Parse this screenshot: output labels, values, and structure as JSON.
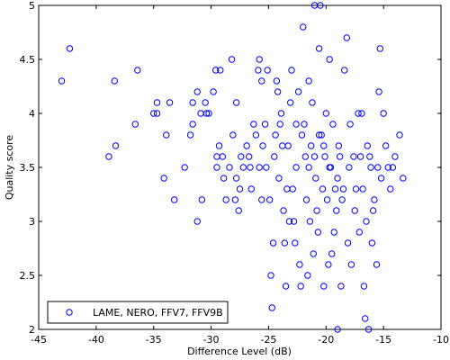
{
  "chart_data": {
    "type": "scatter",
    "xlabel": "Difference Level (dB)",
    "ylabel": "Quality score",
    "xlim": [
      -45,
      -10
    ],
    "ylim": [
      2,
      5
    ],
    "xticks": [
      -45,
      -40,
      -35,
      -30,
      -25,
      -20,
      -15,
      -10
    ],
    "yticks": [
      2,
      2.5,
      3,
      3.5,
      4,
      4.5,
      5
    ],
    "grid": false,
    "legend_position": "bottom-left",
    "marker_color": "#0000ff",
    "series": [
      {
        "name": "LAME, NERO, FFV7, FFV9B",
        "points": [
          [
            -43.0,
            4.3
          ],
          [
            -42.3,
            4.6
          ],
          [
            -38.4,
            4.3
          ],
          [
            -38.3,
            3.7
          ],
          [
            -38.9,
            3.6
          ],
          [
            -36.4,
            4.4
          ],
          [
            -36.6,
            3.9
          ],
          [
            -35.0,
            4.0
          ],
          [
            -34.7,
            4.1
          ],
          [
            -34.7,
            4.0
          ],
          [
            -34.1,
            3.4
          ],
          [
            -33.9,
            3.8
          ],
          [
            -33.6,
            4.1
          ],
          [
            -33.2,
            3.2
          ],
          [
            -32.3,
            3.5
          ],
          [
            -31.8,
            3.8
          ],
          [
            -31.6,
            3.9
          ],
          [
            -31.6,
            4.1
          ],
          [
            -31.2,
            4.2
          ],
          [
            -30.9,
            4.0
          ],
          [
            -30.5,
            4.1
          ],
          [
            -30.2,
            4.0
          ],
          [
            -31.2,
            3.0
          ],
          [
            -30.8,
            3.2
          ],
          [
            -30.4,
            4.0
          ],
          [
            -29.8,
            4.2
          ],
          [
            -29.6,
            4.4
          ],
          [
            -29.2,
            4.4
          ],
          [
            -29.5,
            3.6
          ],
          [
            -29.5,
            3.5
          ],
          [
            -29.3,
            3.7
          ],
          [
            -29.0,
            3.6
          ],
          [
            -28.9,
            3.4
          ],
          [
            -28.7,
            3.2
          ],
          [
            -28.2,
            4.5
          ],
          [
            -28.4,
            3.5
          ],
          [
            -28.1,
            3.8
          ],
          [
            -27.9,
            3.2
          ],
          [
            -27.6,
            3.1
          ],
          [
            -27.8,
            4.1
          ],
          [
            -27.4,
            3.6
          ],
          [
            -27.2,
            3.5
          ],
          [
            -27.5,
            3.3
          ],
          [
            -26.9,
            3.7
          ],
          [
            -26.7,
            3.6
          ],
          [
            -26.5,
            3.3
          ],
          [
            -26.3,
            3.9
          ],
          [
            -26.1,
            3.8
          ],
          [
            -25.8,
            4.5
          ],
          [
            -25.9,
            4.4
          ],
          [
            -25.6,
            4.3
          ],
          [
            -25.8,
            3.5
          ],
          [
            -25.5,
            3.7
          ],
          [
            -25.6,
            3.2
          ],
          [
            -25.3,
            3.9
          ],
          [
            -25.1,
            4.4
          ],
          [
            -25.2,
            3.5
          ],
          [
            -24.9,
            3.2
          ],
          [
            -24.8,
            2.5
          ],
          [
            -24.7,
            2.2
          ],
          [
            -24.6,
            2.8
          ],
          [
            -24.5,
            3.6
          ],
          [
            -24.3,
            4.3
          ],
          [
            -24.2,
            4.2
          ],
          [
            -24.4,
            3.8
          ],
          [
            -24.1,
            3.4
          ],
          [
            -23.9,
            4.0
          ],
          [
            -23.8,
            3.7
          ],
          [
            -23.7,
            3.1
          ],
          [
            -23.5,
            2.4
          ],
          [
            -23.6,
            2.8
          ],
          [
            -23.3,
            3.7
          ],
          [
            -23.2,
            3.0
          ],
          [
            -23.1,
            4.1
          ],
          [
            -23.0,
            4.4
          ],
          [
            -22.9,
            3.3
          ],
          [
            -22.8,
            3.0
          ],
          [
            -22.7,
            2.8
          ],
          [
            -22.6,
            3.9
          ],
          [
            -22.6,
            3.5
          ],
          [
            -22.4,
            4.2
          ],
          [
            -22.3,
            2.6
          ],
          [
            -22.2,
            2.4
          ],
          [
            -22.0,
            4.8
          ],
          [
            -21.9,
            3.9
          ],
          [
            -21.8,
            3.6
          ],
          [
            -21.7,
            3.2
          ],
          [
            -21.6,
            2.5
          ],
          [
            -21.5,
            4.3
          ],
          [
            -21.4,
            3.0
          ],
          [
            -21.3,
            3.7
          ],
          [
            -21.2,
            4.1
          ],
          [
            -21.1,
            2.7
          ],
          [
            -21.0,
            5.0
          ],
          [
            -20.9,
            3.4
          ],
          [
            -20.8,
            3.1
          ],
          [
            -20.7,
            2.9
          ],
          [
            -20.6,
            4.6
          ],
          [
            -20.5,
            5.0
          ],
          [
            -20.4,
            3.8
          ],
          [
            -20.3,
            3.3
          ],
          [
            -20.2,
            2.4
          ],
          [
            -20.1,
            3.6
          ],
          [
            -20.0,
            4.0
          ],
          [
            -19.9,
            3.2
          ],
          [
            -19.8,
            2.6
          ],
          [
            -19.7,
            4.5
          ],
          [
            -19.6,
            3.5
          ],
          [
            -19.5,
            2.7
          ],
          [
            -19.4,
            3.9
          ],
          [
            -19.3,
            2.9
          ],
          [
            -19.2,
            3.3
          ],
          [
            -19.1,
            3.1
          ],
          [
            -19.0,
            2.0
          ],
          [
            -18.9,
            3.7
          ],
          [
            -18.8,
            3.6
          ],
          [
            -18.7,
            2.4
          ],
          [
            -18.6,
            3.2
          ],
          [
            -18.4,
            4.4
          ],
          [
            -18.2,
            4.7
          ],
          [
            -18.1,
            2.8
          ],
          [
            -18.0,
            3.5
          ],
          [
            -17.9,
            3.9
          ],
          [
            -17.8,
            2.6
          ],
          [
            -17.6,
            3.6
          ],
          [
            -17.5,
            3.1
          ],
          [
            -17.4,
            3.3
          ],
          [
            -17.2,
            4.0
          ],
          [
            -17.1,
            2.9
          ],
          [
            -16.9,
            4.0
          ],
          [
            -16.8,
            3.3
          ],
          [
            -16.7,
            2.4
          ],
          [
            -16.6,
            2.1
          ],
          [
            -16.5,
            3.0
          ],
          [
            -16.4,
            3.7
          ],
          [
            -16.3,
            2.0
          ],
          [
            -16.2,
            3.6
          ],
          [
            -16.0,
            2.8
          ],
          [
            -15.9,
            3.1
          ],
          [
            -15.8,
            3.2
          ],
          [
            -15.6,
            2.6
          ],
          [
            -15.5,
            3.5
          ],
          [
            -15.4,
            4.2
          ],
          [
            -15.3,
            4.6
          ],
          [
            -15.2,
            3.4
          ],
          [
            -15.0,
            4.0
          ],
          [
            -14.8,
            3.7
          ],
          [
            -14.6,
            3.5
          ],
          [
            -14.4,
            3.3
          ],
          [
            -14.2,
            3.5
          ],
          [
            -14.0,
            3.6
          ],
          [
            -13.6,
            3.8
          ],
          [
            -13.3,
            3.4
          ],
          [
            -27.8,
            3.4
          ],
          [
            -26.6,
            3.5
          ],
          [
            -24.0,
            3.9
          ],
          [
            -23.4,
            3.3
          ],
          [
            -22.1,
            3.8
          ],
          [
            -21.5,
            3.5
          ],
          [
            -21.0,
            3.6
          ],
          [
            -20.6,
            3.8
          ],
          [
            -20.2,
            3.7
          ],
          [
            -19.7,
            3.5
          ],
          [
            -19.0,
            3.4
          ],
          [
            -18.5,
            3.3
          ],
          [
            -17.0,
            3.6
          ],
          [
            -16.1,
            3.5
          ]
        ]
      }
    ]
  }
}
